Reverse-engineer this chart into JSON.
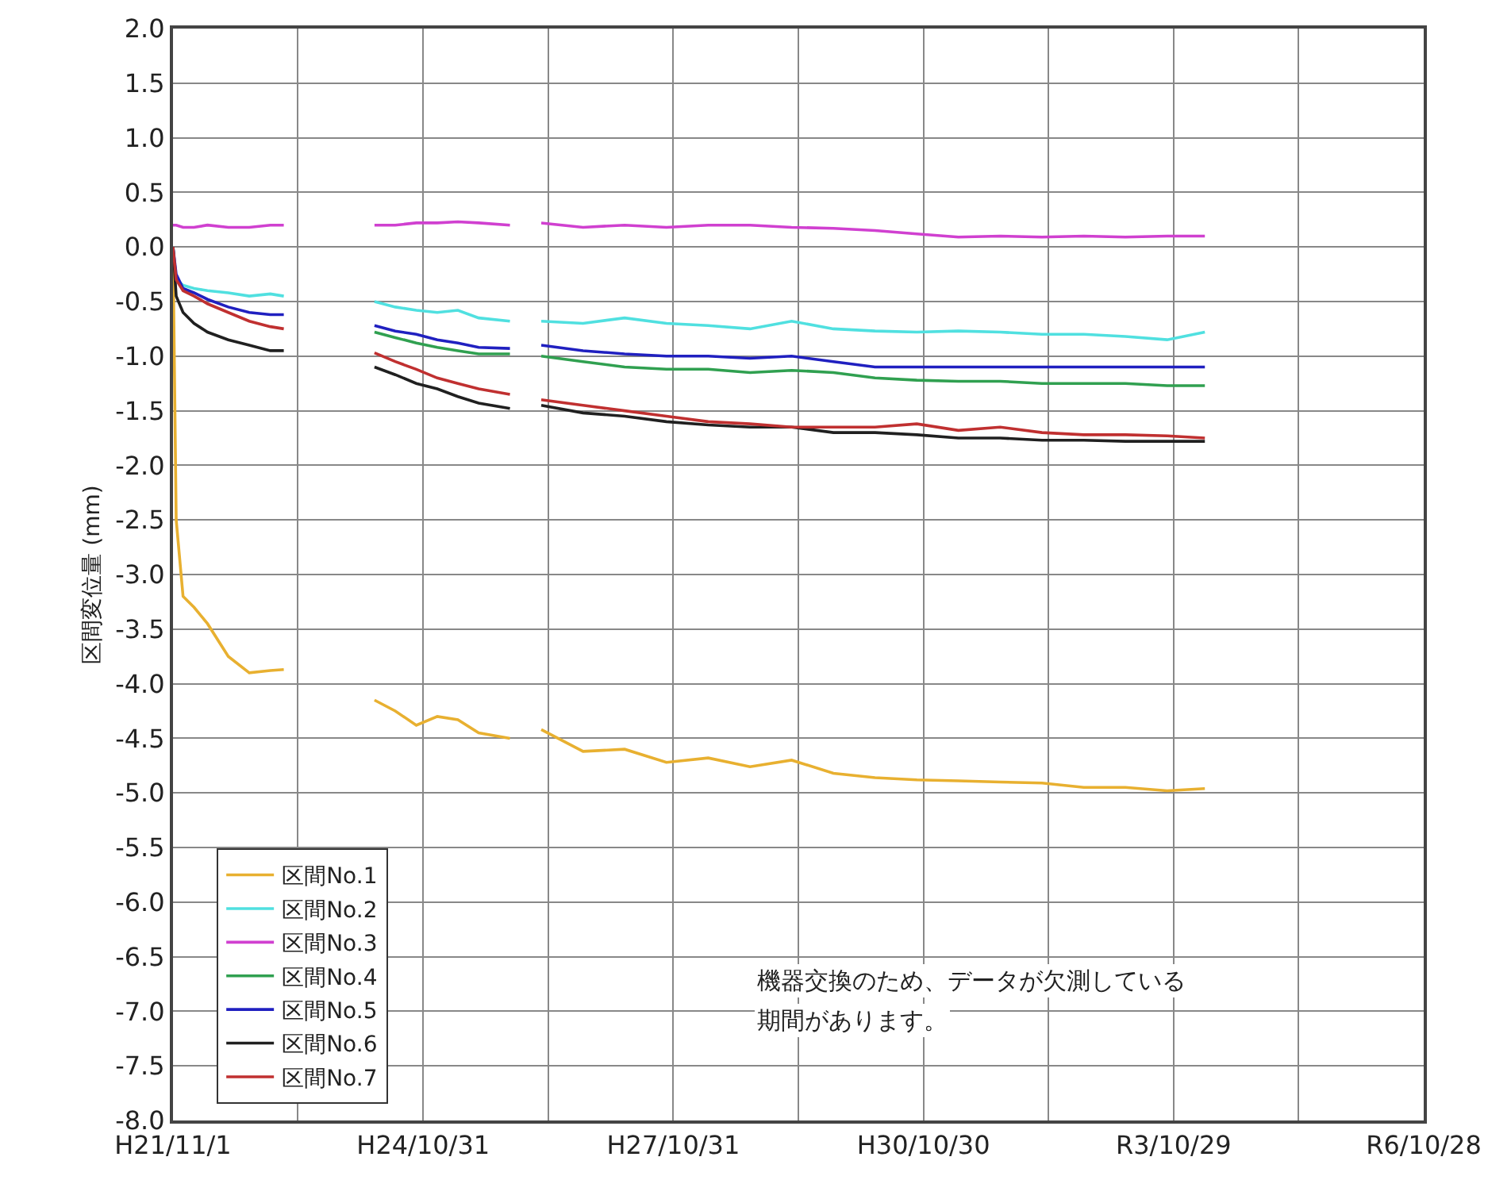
{
  "chart_data": {
    "type": "line",
    "ylabel": "区間変位量 (mm)",
    "x": [
      "2009-11-01",
      "2009-11-15",
      "2009-12-15",
      "2010-02-01",
      "2010-04-01",
      "2010-07-01",
      "2010-10-01",
      "2011-01-01",
      "2011-03-01",
      "2011-09-01",
      "2012-04-01",
      "2012-07-01",
      "2012-10-01",
      "2013-01-01",
      "2013-04-01",
      "2013-07-01",
      "2013-11-15",
      "2014-01-15",
      "2014-04-01",
      "2014-10-01",
      "2015-04-01",
      "2015-10-01",
      "2016-04-01",
      "2016-10-01",
      "2017-04-01",
      "2017-10-01",
      "2018-04-01",
      "2018-10-01",
      "2019-04-01",
      "2019-10-01",
      "2020-04-01",
      "2020-10-01",
      "2021-04-01",
      "2021-10-01",
      "2022-03-15"
    ],
    "series": [
      {
        "name": "区間No.1",
        "color": "#e8b030",
        "values": [
          0,
          -2.5,
          -3.2,
          -3.3,
          -3.45,
          -3.75,
          -3.9,
          -3.88,
          -3.87,
          null,
          -4.15,
          -4.25,
          -4.38,
          -4.3,
          -4.33,
          -4.45,
          -4.5,
          null,
          -4.42,
          -4.62,
          -4.6,
          -4.72,
          -4.68,
          -4.76,
          -4.7,
          -4.82,
          -4.86,
          -4.88,
          -4.89,
          -4.9,
          -4.91,
          -4.95,
          -4.95,
          -4.98,
          -4.96
        ]
      },
      {
        "name": "区間No.2",
        "color": "#50e0e0",
        "values": [
          0,
          -0.3,
          -0.35,
          -0.38,
          -0.4,
          -0.42,
          -0.45,
          -0.43,
          -0.45,
          null,
          -0.5,
          -0.55,
          -0.58,
          -0.6,
          -0.58,
          -0.65,
          -0.68,
          null,
          -0.68,
          -0.7,
          -0.65,
          -0.7,
          -0.72,
          -0.75,
          -0.68,
          -0.75,
          -0.77,
          -0.78,
          -0.77,
          -0.78,
          -0.8,
          -0.8,
          -0.82,
          -0.85,
          -0.78
        ]
      },
      {
        "name": "区間No.3",
        "color": "#d040d0",
        "values": [
          0.2,
          0.2,
          0.18,
          0.18,
          0.2,
          0.18,
          0.18,
          0.2,
          0.2,
          null,
          0.2,
          0.2,
          0.22,
          0.22,
          0.23,
          0.22,
          0.2,
          null,
          0.22,
          0.18,
          0.2,
          0.18,
          0.2,
          0.2,
          0.18,
          0.17,
          0.15,
          0.12,
          0.09,
          0.1,
          0.09,
          0.1,
          0.09,
          0.1,
          0.1
        ]
      },
      {
        "name": "区間No.4",
        "color": "#30a050",
        "values": [
          null,
          null,
          null,
          null,
          null,
          null,
          null,
          null,
          null,
          null,
          -0.78,
          -0.83,
          -0.88,
          -0.92,
          -0.95,
          -0.98,
          -0.98,
          null,
          -1.0,
          -1.05,
          -1.1,
          -1.12,
          -1.12,
          -1.15,
          -1.13,
          -1.15,
          -1.2,
          -1.22,
          -1.23,
          -1.23,
          -1.25,
          -1.25,
          -1.25,
          -1.27,
          -1.27
        ]
      },
      {
        "name": "区間No.5",
        "color": "#2020c0",
        "values": [
          0,
          -0.25,
          -0.38,
          -0.42,
          -0.48,
          -0.55,
          -0.6,
          -0.62,
          -0.62,
          null,
          -0.72,
          -0.77,
          -0.8,
          -0.85,
          -0.88,
          -0.92,
          -0.93,
          null,
          -0.9,
          -0.95,
          -0.98,
          -1.0,
          -1.0,
          -1.02,
          -1.0,
          -1.05,
          -1.1,
          -1.1,
          -1.1,
          -1.1,
          -1.1,
          -1.1,
          -1.1,
          -1.1,
          -1.1
        ]
      },
      {
        "name": "区間No.6",
        "color": "#202020",
        "values": [
          0,
          -0.45,
          -0.6,
          -0.7,
          -0.78,
          -0.85,
          -0.9,
          -0.95,
          -0.95,
          null,
          -1.1,
          -1.17,
          -1.25,
          -1.3,
          -1.37,
          -1.43,
          -1.48,
          null,
          -1.45,
          -1.52,
          -1.55,
          -1.6,
          -1.63,
          -1.65,
          -1.65,
          -1.7,
          -1.7,
          -1.72,
          -1.75,
          -1.75,
          -1.77,
          -1.77,
          -1.78,
          -1.78,
          -1.78
        ]
      },
      {
        "name": "区間No.7",
        "color": "#c03030",
        "values": [
          0,
          -0.3,
          -0.4,
          -0.45,
          -0.52,
          -0.6,
          -0.68,
          -0.73,
          -0.75,
          null,
          -0.97,
          -1.05,
          -1.12,
          -1.2,
          -1.25,
          -1.3,
          -1.35,
          null,
          -1.4,
          -1.45,
          -1.5,
          -1.55,
          -1.6,
          -1.62,
          -1.65,
          -1.65,
          -1.65,
          -1.62,
          -1.68,
          -1.65,
          -1.7,
          -1.72,
          -1.72,
          -1.73,
          -1.75
        ]
      }
    ],
    "xlim": [
      "2009-11-01",
      "2024-10-28"
    ],
    "xticks": [
      {
        "value": "2009-11-01",
        "label": "H21/11/1"
      },
      {
        "value": "2011-05-01",
        "label": null
      },
      {
        "value": "2012-10-31",
        "label": "H24/10/31"
      },
      {
        "value": "2014-05-01",
        "label": null
      },
      {
        "value": "2015-10-31",
        "label": "H27/10/31"
      },
      {
        "value": "2017-05-01",
        "label": null
      },
      {
        "value": "2018-10-30",
        "label": "H30/10/30"
      },
      {
        "value": "2020-04-30",
        "label": null
      },
      {
        "value": "2021-10-29",
        "label": "R3/10/29"
      },
      {
        "value": "2023-04-29",
        "label": null
      },
      {
        "value": "2024-10-28",
        "label": "R6/10/28"
      }
    ],
    "ylim": [
      -8,
      2
    ],
    "yticks": [
      {
        "value": 2,
        "label": "2.0"
      },
      1.5,
      {
        "value": 1,
        "label": "1.0"
      },
      0.5,
      {
        "value": 0,
        "label": "0.0"
      },
      -0.5,
      {
        "value": -1,
        "label": "-1.0"
      },
      -1.5,
      {
        "value": -2,
        "label": "-2.0"
      },
      -2.5,
      {
        "value": -3,
        "label": "-3.0"
      },
      -3.5,
      {
        "value": -4,
        "label": "-4.0"
      },
      -4.5,
      {
        "value": -5,
        "label": "-5.0"
      },
      -5.5,
      {
        "value": -6,
        "label": "-6.0"
      },
      -6.5,
      {
        "value": -7,
        "label": "-7.0"
      },
      -7.5,
      {
        "value": -8,
        "label": "-8.0"
      }
    ],
    "grid": true,
    "legend": "bottom left",
    "marker": "none",
    "line_style": "solid",
    "annotations": [
      "機器交換のため、データが欠測している",
      "期間があります。"
    ]
  }
}
